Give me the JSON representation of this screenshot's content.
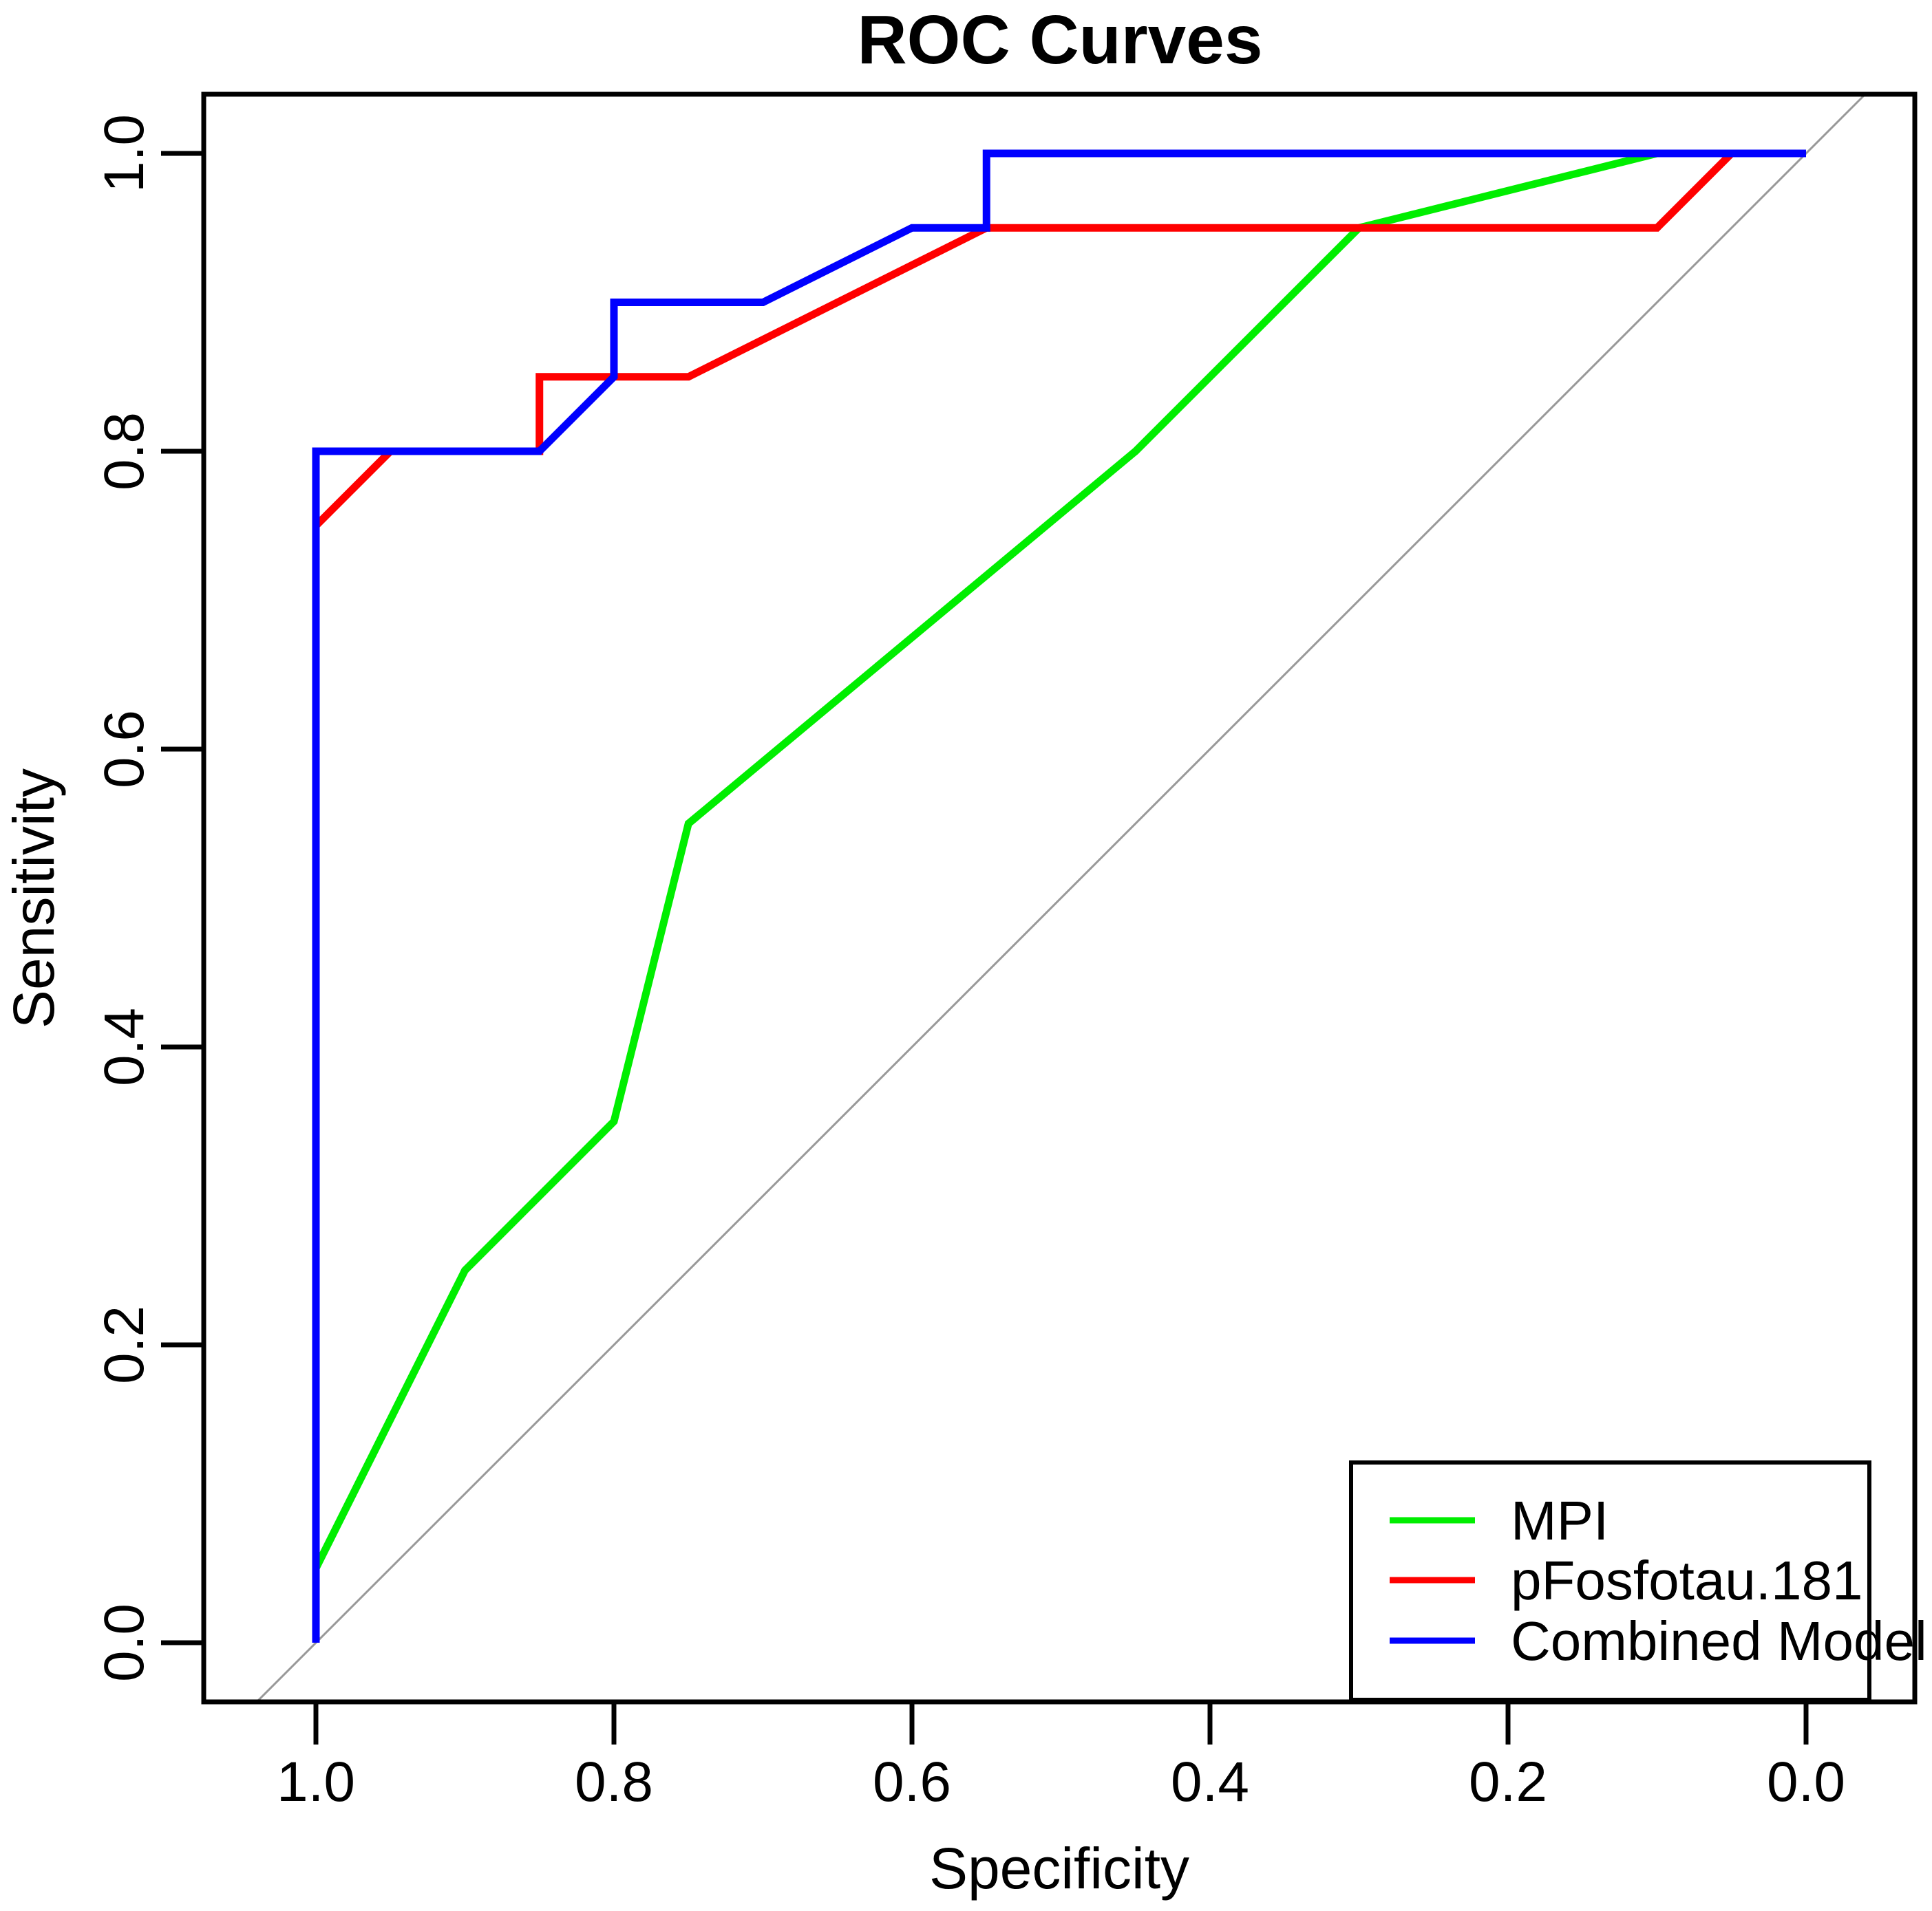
{
  "chart_data": {
    "type": "line",
    "subtype": "roc-curves",
    "title": "ROC Curves",
    "xlabel": "Specificity",
    "ylabel": "Sensitivity",
    "x_axis_reversed": true,
    "xlim": [
      1.0,
      0.0
    ],
    "ylim": [
      0.0,
      1.0
    ],
    "grid": false,
    "x_ticks": [
      {
        "label": "1.0",
        "value": 1.0
      },
      {
        "label": "0.8",
        "value": 0.8
      },
      {
        "label": "0.6",
        "value": 0.6
      },
      {
        "label": "0.4",
        "value": 0.4
      },
      {
        "label": "0.2",
        "value": 0.2
      },
      {
        "label": "0.0",
        "value": 0.0
      }
    ],
    "y_ticks": [
      {
        "label": "0.0",
        "value": 0.0
      },
      {
        "label": "0.2",
        "value": 0.2
      },
      {
        "label": "0.4",
        "value": 0.4
      },
      {
        "label": "0.6",
        "value": 0.6
      },
      {
        "label": "0.8",
        "value": 0.8
      },
      {
        "label": "1.0",
        "value": 1.0
      }
    ],
    "reference_line": {
      "name": "chance-diagonal",
      "color": "#999999",
      "from": {
        "specificity": 1.0,
        "sensitivity": 0.0
      },
      "to": {
        "specificity": 0.0,
        "sensitivity": 1.0
      }
    },
    "series": [
      {
        "name": "MPI",
        "color": "#00ee00",
        "points_spec_sens": [
          [
            1.0,
            0.0
          ],
          [
            1.0,
            0.05
          ],
          [
            0.9,
            0.25
          ],
          [
            0.8,
            0.35
          ],
          [
            0.75,
            0.55
          ],
          [
            0.45,
            0.8
          ],
          [
            0.3,
            0.95
          ],
          [
            0.1,
            1.0
          ],
          [
            0.0,
            1.0
          ]
        ]
      },
      {
        "name": "pFosfotau.181",
        "color": "#ff0000",
        "points_spec_sens": [
          [
            1.0,
            0.0
          ],
          [
            1.0,
            0.75
          ],
          [
            0.95,
            0.8
          ],
          [
            0.85,
            0.8
          ],
          [
            0.85,
            0.85
          ],
          [
            0.75,
            0.85
          ],
          [
            0.55,
            0.95
          ],
          [
            0.1,
            0.95
          ],
          [
            0.05,
            1.0
          ],
          [
            0.0,
            1.0
          ]
        ]
      },
      {
        "name": "Combined Model",
        "color": "#0000ff",
        "points_spec_sens": [
          [
            1.0,
            0.0
          ],
          [
            1.0,
            0.8
          ],
          [
            0.85,
            0.8
          ],
          [
            0.8,
            0.85
          ],
          [
            0.8,
            0.9
          ],
          [
            0.7,
            0.9
          ],
          [
            0.6,
            0.95
          ],
          [
            0.55,
            0.95
          ],
          [
            0.55,
            1.0
          ],
          [
            0.0,
            1.0
          ]
        ]
      }
    ],
    "legend": {
      "position": "bottomright",
      "entries": [
        {
          "label": "MPI",
          "color": "#00ee00"
        },
        {
          "label": "pFosfotau.181",
          "color": "#ff0000"
        },
        {
          "label": "Combined Model",
          "color": "#0000ff"
        }
      ]
    }
  }
}
